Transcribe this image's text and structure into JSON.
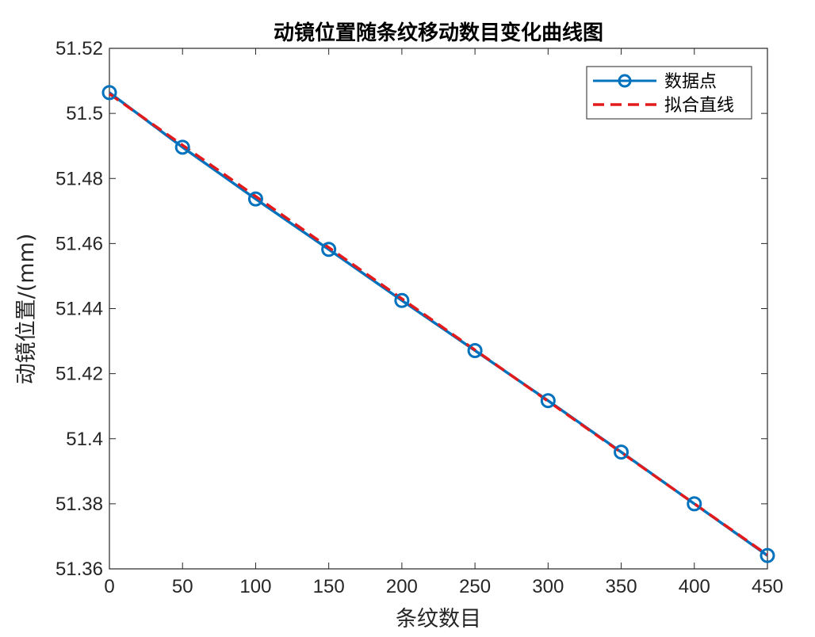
{
  "chart_data": {
    "type": "line",
    "title": "动镜位置随条纹移动数目变化曲线图",
    "xlabel": "条纹数目",
    "ylabel": "动镜位置/(mm)",
    "xlim": [
      0,
      450
    ],
    "ylim": [
      51.36,
      51.52
    ],
    "xticks": [
      0,
      50,
      100,
      150,
      200,
      250,
      300,
      350,
      400,
      450
    ],
    "yticks": [
      51.36,
      51.38,
      51.4,
      51.42,
      51.44,
      51.46,
      51.48,
      51.5,
      51.52
    ],
    "xtick_labels": [
      "0",
      "50",
      "100",
      "150",
      "200",
      "250",
      "300",
      "350",
      "400",
      "450"
    ],
    "ytick_labels": [
      "51.36",
      "51.38",
      "51.4",
      "51.42",
      "51.44",
      "51.46",
      "51.48",
      "51.5",
      "51.52"
    ],
    "grid": false,
    "legend_position": "top-right",
    "series": [
      {
        "name": "数据点",
        "style": "solid-with-circle-markers",
        "color": "#0072BD",
        "x": [
          0,
          50,
          100,
          150,
          200,
          250,
          300,
          350,
          400,
          450
        ],
        "y": [
          51.5064,
          51.4896,
          51.4737,
          51.4582,
          51.4425,
          51.4271,
          51.4117,
          51.3959,
          51.38,
          51.3641
        ]
      },
      {
        "name": "拟合直线",
        "style": "dashed",
        "color": "#E31A1C",
        "x": [
          0,
          450
        ],
        "y": [
          51.506,
          51.3643
        ]
      }
    ]
  }
}
